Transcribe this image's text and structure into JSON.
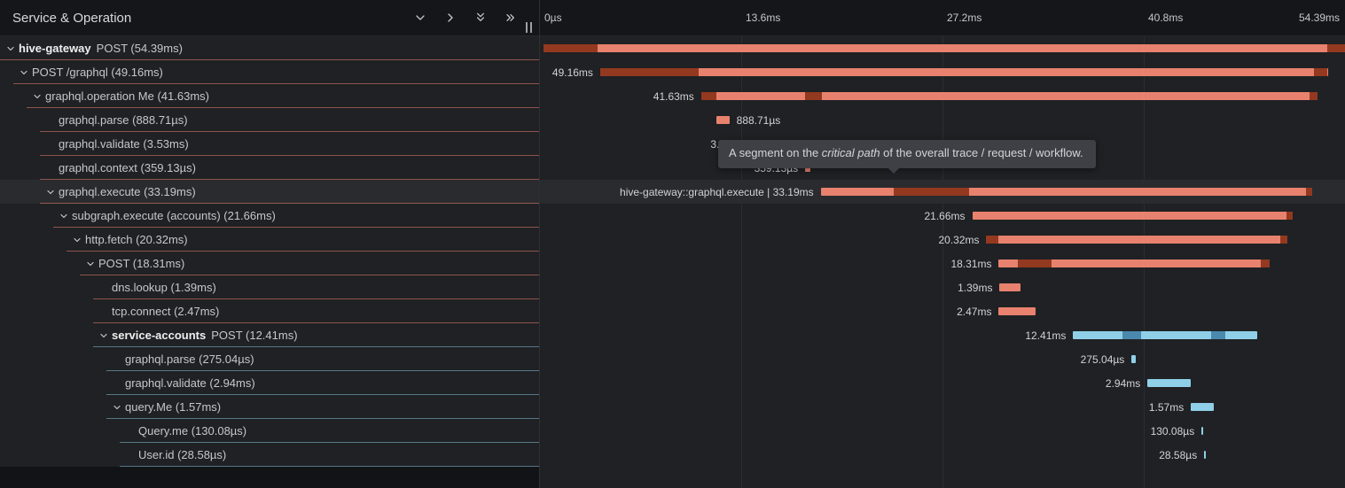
{
  "panel": {
    "title": "Service & Operation",
    "icons": [
      "chevron-down",
      "chevron-right",
      "double-chevron-down",
      "double-chevron-right",
      "drag-handle"
    ]
  },
  "timeline": {
    "total": "54.39ms",
    "ticks": [
      {
        "label": "0µs",
        "pos": 0
      },
      {
        "label": "13.6ms",
        "pos": 0.25
      },
      {
        "label": "27.2ms",
        "pos": 0.5
      },
      {
        "label": "40.8ms",
        "pos": 0.75
      },
      {
        "label": "54.39ms",
        "pos": 1
      }
    ]
  },
  "tooltip": {
    "pre": "A segment on the ",
    "emphasis": "critical path",
    "post": " of the overall trace / request / workflow."
  },
  "colors": {
    "span_red": "#e8826e",
    "span_red_dark": "#93391f",
    "span_blue": "#8fd0e8",
    "span_blue_dark": "#4a89ad",
    "row_border_red": "rgba(231,129,109,0.55)",
    "row_border_blue": "rgba(143,208,232,0.5)"
  },
  "spans": [
    {
      "service": "hive-gateway",
      "text": "POST (54.39ms)",
      "depth": 0,
      "expandable": true,
      "color": "red",
      "start": 0.004,
      "width": 0.996,
      "label": "",
      "label_side": "none",
      "marks": [
        [
          0.004,
          0.068
        ],
        [
          0.978,
          0.022
        ]
      ],
      "hovered": false
    },
    {
      "service": null,
      "text": "POST /graphql (49.16ms)",
      "depth": 1,
      "expandable": true,
      "color": "red",
      "start": 0.0748,
      "width": 0.9038,
      "label": "49.16ms",
      "label_side": "left",
      "marks": [
        [
          0.0748,
          0.122
        ],
        [
          0.962,
          0.0165
        ]
      ],
      "hovered": false
    },
    {
      "service": null,
      "text": "graphql.operation Me (41.63ms)",
      "depth": 2,
      "expandable": true,
      "color": "red",
      "start": 0.2002,
      "width": 0.7654,
      "label": "41.63ms",
      "label_side": "left",
      "marks": [
        [
          0.2002,
          0.019
        ],
        [
          0.3298,
          0.0208
        ],
        [
          0.9562,
          0.0094
        ]
      ],
      "hovered": false
    },
    {
      "service": null,
      "text": "graphql.parse (888.71µs)",
      "depth": 3,
      "expandable": false,
      "color": "red",
      "start": 0.219,
      "width": 0.0163,
      "label": "888.71µs",
      "label_side": "right",
      "marks": [],
      "hovered": false
    },
    {
      "service": null,
      "text": "graphql.validate (3.53ms)",
      "depth": 3,
      "expandable": false,
      "color": "red",
      "start": 0.264,
      "width": 0.0649,
      "label": "3.53ms",
      "label_side": "left",
      "marks": [],
      "hovered": false
    },
    {
      "service": null,
      "text": "graphql.context (359.13µs)",
      "depth": 3,
      "expandable": false,
      "color": "red",
      "start": 0.3295,
      "width": 0.0066,
      "label": "359.13µs",
      "label_side": "left",
      "marks": [],
      "hovered": false
    },
    {
      "service": null,
      "text": "graphql.execute (33.19ms)",
      "depth": 3,
      "expandable": true,
      "color": "red",
      "start": 0.3487,
      "width": 0.6102,
      "label": "hive-gateway::graphql.execute | 33.19ms",
      "label_side": "left",
      "marks": [
        [
          0.4399,
          0.0935
        ],
        [
          0.9518,
          0.0071
        ]
      ],
      "hovered": true
    },
    {
      "service": null,
      "text": "subgraph.execute (accounts) (21.66ms)",
      "depth": 4,
      "expandable": true,
      "color": "red",
      "start": 0.5369,
      "width": 0.3982,
      "label": "21.66ms",
      "label_side": "left",
      "marks": [
        [
          0.9277,
          0.0074
        ]
      ],
      "hovered": false
    },
    {
      "service": null,
      "text": "http.fetch (20.32ms)",
      "depth": 5,
      "expandable": true,
      "color": "red",
      "start": 0.5545,
      "width": 0.3736,
      "label": "20.32ms",
      "label_side": "left",
      "marks": [
        [
          0.5545,
          0.0154
        ],
        [
          0.9199,
          0.0082
        ]
      ],
      "hovered": false
    },
    {
      "service": null,
      "text": "POST (18.31ms)",
      "depth": 6,
      "expandable": true,
      "color": "red",
      "start": 0.5699,
      "width": 0.3366,
      "label": "18.31ms",
      "label_side": "left",
      "marks": [
        [
          0.594,
          0.042
        ],
        [
          0.8955,
          0.011
        ]
      ],
      "hovered": false
    },
    {
      "service": null,
      "text": "dns.lookup (1.39ms)",
      "depth": 7,
      "expandable": false,
      "color": "red",
      "start": 0.571,
      "width": 0.0256,
      "label": "1.39ms",
      "label_side": "left",
      "marks": [],
      "hovered": false
    },
    {
      "service": null,
      "text": "tcp.connect (2.47ms)",
      "depth": 7,
      "expandable": false,
      "color": "red",
      "start": 0.5699,
      "width": 0.0454,
      "label": "2.47ms",
      "label_side": "left",
      "marks": [],
      "hovered": false
    },
    {
      "service": "service-accounts",
      "text": "POST (12.41ms)",
      "depth": 7,
      "expandable": true,
      "color": "blue",
      "start": 0.6623,
      "width": 0.2282,
      "label": "12.41ms",
      "label_side": "left",
      "marks": [
        [
          0.7238,
          0.0231
        ],
        [
          0.8339,
          0.0176
        ]
      ],
      "hovered": false
    },
    {
      "service": null,
      "text": "graphql.parse (275.04µs)",
      "depth": 8,
      "expandable": false,
      "color": "blue",
      "start": 0.7349,
      "width": 0.0051,
      "label": "275.04µs",
      "label_side": "left",
      "marks": [],
      "hovered": false
    },
    {
      "service": null,
      "text": "graphql.validate (2.94ms)",
      "depth": 8,
      "expandable": false,
      "color": "blue",
      "start": 0.7547,
      "width": 0.0541,
      "label": "2.94ms",
      "label_side": "left",
      "marks": [],
      "hovered": false
    },
    {
      "service": null,
      "text": "query.Me (1.57ms)",
      "depth": 8,
      "expandable": true,
      "color": "blue",
      "start": 0.8086,
      "width": 0.0289,
      "label": "1.57ms",
      "label_side": "left",
      "marks": [],
      "hovered": false
    },
    {
      "service": null,
      "text": "Query.me (130.08µs)",
      "depth": 9,
      "expandable": false,
      "color": "blue",
      "start": 0.8218,
      "width": 0.0024,
      "label": "130.08µs",
      "label_side": "left",
      "marks": [],
      "hovered": false
    },
    {
      "service": null,
      "text": "User.id (28.58µs)",
      "depth": 9,
      "expandable": false,
      "color": "blue",
      "start": 0.8251,
      "width": 0.0008,
      "label": "28.58µs",
      "label_side": "left",
      "marks": [],
      "hovered": false
    }
  ]
}
